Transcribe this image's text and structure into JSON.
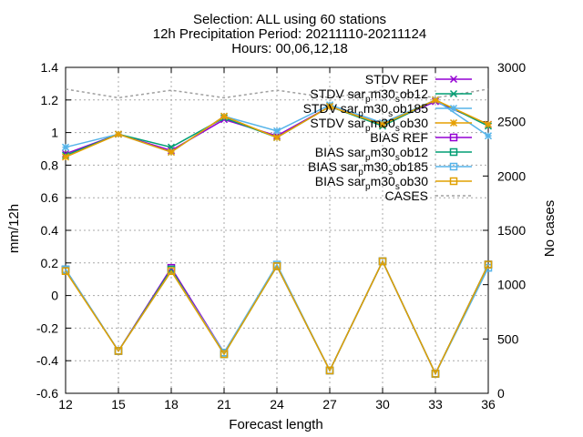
{
  "chart_data": {
    "type": "line",
    "title_lines": [
      "Selection: ALL using    60 stations",
      "12h Precipitation   Period: 20211110-20211124",
      "Hours: 00,06,12,18"
    ],
    "xlabel": "Forecast length",
    "ylabel": "mm/12h",
    "y2label": "No cases",
    "x": [
      12,
      15,
      18,
      21,
      24,
      27,
      30,
      33,
      36
    ],
    "xlim": [
      12,
      36
    ],
    "ylim": [
      -0.6,
      1.4
    ],
    "y_ticks": [
      "-0.6",
      "-0.4",
      "-0.2",
      "0",
      "0.2",
      "0.4",
      "0.6",
      "0.8",
      "1",
      "1.2",
      "1.4"
    ],
    "y_tick_values": [
      -0.6,
      -0.4,
      -0.2,
      0,
      0.2,
      0.4,
      0.6,
      0.8,
      1.0,
      1.2,
      1.4
    ],
    "y2lim": [
      0,
      3000
    ],
    "y2_ticks": [
      "0",
      "500",
      "1000",
      "1500",
      "2000",
      "2500",
      "3000"
    ],
    "y2_tick_values": [
      0,
      500,
      1000,
      1500,
      2000,
      2500,
      3000
    ],
    "grid": true,
    "legend_position": "top-right",
    "series": [
      {
        "name": "STDV REF",
        "axis": "y",
        "color": "#9400d3",
        "marker": "cross",
        "dash": false,
        "values": [
          0.87,
          0.99,
          0.89,
          1.08,
          0.98,
          1.16,
          1.05,
          1.19,
          1.05
        ]
      },
      {
        "name": "STDV sarpm30sob12",
        "name_rich": [
          "STDV sar",
          "p",
          "m30",
          "s",
          "ob12"
        ],
        "axis": "y",
        "color": "#009e73",
        "marker": "x",
        "dash": false,
        "values": [
          0.86,
          0.99,
          0.91,
          1.09,
          0.97,
          1.16,
          1.04,
          1.2,
          1.04
        ]
      },
      {
        "name": "STDV sarpm30sob185",
        "name_rich": [
          "STDV sar",
          "p",
          "m30",
          "s",
          "ob185"
        ],
        "axis": "y",
        "color": "#56b4e9",
        "marker": "star",
        "dash": false,
        "values": [
          0.91,
          0.99,
          0.88,
          1.1,
          1.01,
          1.17,
          1.06,
          1.2,
          0.98
        ]
      },
      {
        "name": "STDV sarpm30sob30",
        "name_rich": [
          "STDV sar",
          "p",
          "m30",
          "s",
          "ob30"
        ],
        "axis": "y",
        "color": "#e69f00",
        "marker": "star",
        "dash": false,
        "values": [
          0.85,
          0.99,
          0.88,
          1.1,
          0.97,
          1.16,
          1.05,
          1.2,
          1.05
        ]
      },
      {
        "name": "BIAS REF",
        "axis": "y",
        "color": "#9400d3",
        "marker": "square",
        "dash": false,
        "values": [
          0.16,
          -0.34,
          0.17,
          -0.35,
          0.18,
          -0.46,
          0.21,
          -0.48,
          0.19
        ]
      },
      {
        "name": "BIAS sarpm30sob12",
        "name_rich": [
          "BIAS sar",
          "p",
          "m30",
          "s",
          "ob12"
        ],
        "axis": "y",
        "color": "#009e73",
        "marker": "square",
        "dash": false,
        "values": [
          0.16,
          -0.34,
          0.16,
          -0.36,
          0.18,
          -0.46,
          0.21,
          -0.48,
          0.19
        ]
      },
      {
        "name": "BIAS sarpm30sob185",
        "name_rich": [
          "BIAS sar",
          "p",
          "m30",
          "s",
          "ob185"
        ],
        "axis": "y",
        "color": "#56b4e9",
        "marker": "square",
        "dash": false,
        "values": [
          0.16,
          -0.34,
          0.15,
          -0.35,
          0.19,
          -0.46,
          0.21,
          -0.48,
          0.17
        ]
      },
      {
        "name": "BIAS sarpm30sob30",
        "name_rich": [
          "BIAS sar",
          "p",
          "m30",
          "s",
          "ob30"
        ],
        "axis": "y",
        "color": "#e0a000",
        "marker": "square",
        "dash": false,
        "values": [
          0.15,
          -0.34,
          0.15,
          -0.36,
          0.18,
          -0.46,
          0.21,
          -0.48,
          0.19
        ]
      },
      {
        "name": "CASES",
        "axis": "y2",
        "color": "#a0a0a0",
        "marker": "none",
        "dash": true,
        "values": [
          2800,
          2720,
          2790,
          2720,
          2790,
          2720,
          2790,
          2720,
          2800
        ]
      }
    ]
  }
}
